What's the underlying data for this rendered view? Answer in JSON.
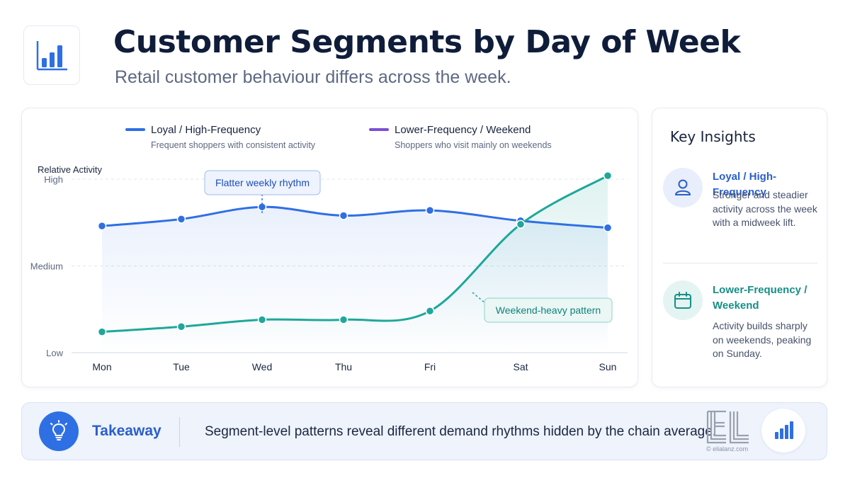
{
  "header": {
    "title": "Customer Segments by Day of Week",
    "subtitle": "Retail customer behaviour differs across the week.",
    "logo_icon": "bar-chart-icon"
  },
  "chart_data": {
    "type": "line",
    "ylabel": "Relative Activity",
    "y_ticks": [
      "Low",
      "Medium",
      "High"
    ],
    "ylim": [
      0,
      100
    ],
    "categories": [
      "Mon",
      "Tue",
      "Wed",
      "Thu",
      "Fri",
      "Sat",
      "Sun"
    ],
    "grid": true,
    "legend_position": "top",
    "series": [
      {
        "name": "Loyal / High-Frequency",
        "description": "Frequent shoppers with consistent activity",
        "color": "#2f6fe4",
        "values": [
          73,
          77,
          84,
          79,
          82,
          76,
          72
        ]
      },
      {
        "name": "Lower-Frequency / Weekend",
        "description": "Shoppers who visit mainly on weekends",
        "color": "#1fa79b",
        "legend_color": "#7b4fd6",
        "values": [
          12,
          15,
          19,
          19,
          24,
          74,
          102
        ]
      }
    ],
    "annotations": [
      {
        "text": "Flatter weekly rhythm",
        "series": 0,
        "category": "Wed"
      },
      {
        "text": "Weekend-heavy pattern",
        "series": 1,
        "category": "Sat"
      }
    ]
  },
  "insights": {
    "title": "Key Insights",
    "items": [
      {
        "heading": "Loyal / High-Frequency",
        "text": "Stronger and steadier activity across the week with a midweek lift.",
        "icon": "user-icon",
        "color": "#2a5fc9"
      },
      {
        "heading": "Lower-Frequency / Weekend",
        "text": "Activity builds sharply on weekends, peaking on Sunday.",
        "icon": "calendar-icon",
        "color": "#168f86"
      }
    ]
  },
  "takeaway": {
    "label": "Takeaway",
    "text": "Segment-level patterns reveal different demand rhythms hidden by the chain average.",
    "icon": "lightbulb-icon",
    "watermark": "© elialanz.com",
    "badge_icon": "bar-chart-icon"
  }
}
